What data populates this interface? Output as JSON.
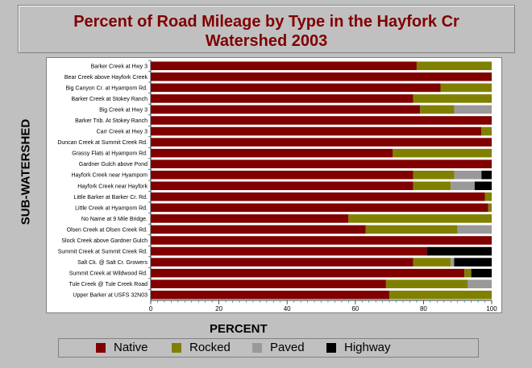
{
  "title_line1": "Percent of Road Mileage by Type in the Hayfork Cr",
  "title_line2": "Watershed 2003",
  "chart_data": {
    "type": "bar",
    "orientation": "horizontal",
    "stacked": true,
    "title": "Percent of Road Mileage by Type in the Hayfork Cr Watershed 2003",
    "xlabel": "PERCENT",
    "ylabel": "SUB-WATERSHED",
    "xlim": [
      0,
      100
    ],
    "xticks": [
      0,
      20,
      40,
      60,
      80,
      100
    ],
    "legend_position": "bottom",
    "categories": [
      "Barker Creek at Hwy 3",
      "Bear Creek above Hayfork Creek",
      "Big Canyon Cr. at Hyampom Rd.",
      "Barker Creek at Stokey Ranch",
      "Big Creek at Hwy 3",
      "Barker Trib. At Stokey Ranch",
      "Carr Creek at Hwy 3",
      "Duncan Creek at Summit Creek Rd.",
      "Grassy Flats at Hyampom Rd.",
      "Gardner Gulch above Pond",
      "Hayfork Creek near Hyampom",
      "Hayfork Creek near Hayfork",
      "Little Barker at Barker Cr. Rd.",
      "Little Creek at Hyampom Rd.",
      "No Name at 9 Mile Bridge.",
      "Olsen Creek at Olsen Creek Rd.",
      "Slock Creek above Gardner Gulch",
      "Summit Creek at Summit Creek Rd.",
      "Salt Ck. @ Salt Cr. Growers",
      "Summit Creek at Wildwood Rd.",
      "Tule Creek @ Tule Creek Road",
      "Upper Barker at USFS 32N03"
    ],
    "series": [
      {
        "name": "Native",
        "color": "#800000",
        "values": [
          78,
          100,
          85,
          77,
          79,
          100,
          97,
          100,
          71,
          100,
          77,
          77,
          98,
          99,
          58,
          63,
          100,
          81,
          77,
          92,
          69,
          70
        ]
      },
      {
        "name": "Rocked",
        "color": "#808000",
        "values": [
          22,
          0,
          15,
          23,
          10,
          0,
          3,
          0,
          29,
          0,
          12,
          11,
          2,
          1,
          42,
          27,
          0,
          0,
          11,
          2,
          24,
          30
        ]
      },
      {
        "name": "Paved",
        "color": "#999999",
        "values": [
          0,
          0,
          0,
          0,
          11,
          0,
          0,
          0,
          0,
          0,
          8,
          7,
          0,
          0,
          0,
          10,
          0,
          0,
          1,
          0,
          7,
          0
        ]
      },
      {
        "name": "Highway",
        "color": "#000000",
        "values": [
          0,
          0,
          0,
          0,
          0,
          0,
          0,
          0,
          0,
          0,
          3,
          5,
          0,
          0,
          0,
          0,
          0,
          19,
          11,
          6,
          0,
          0
        ]
      }
    ]
  }
}
